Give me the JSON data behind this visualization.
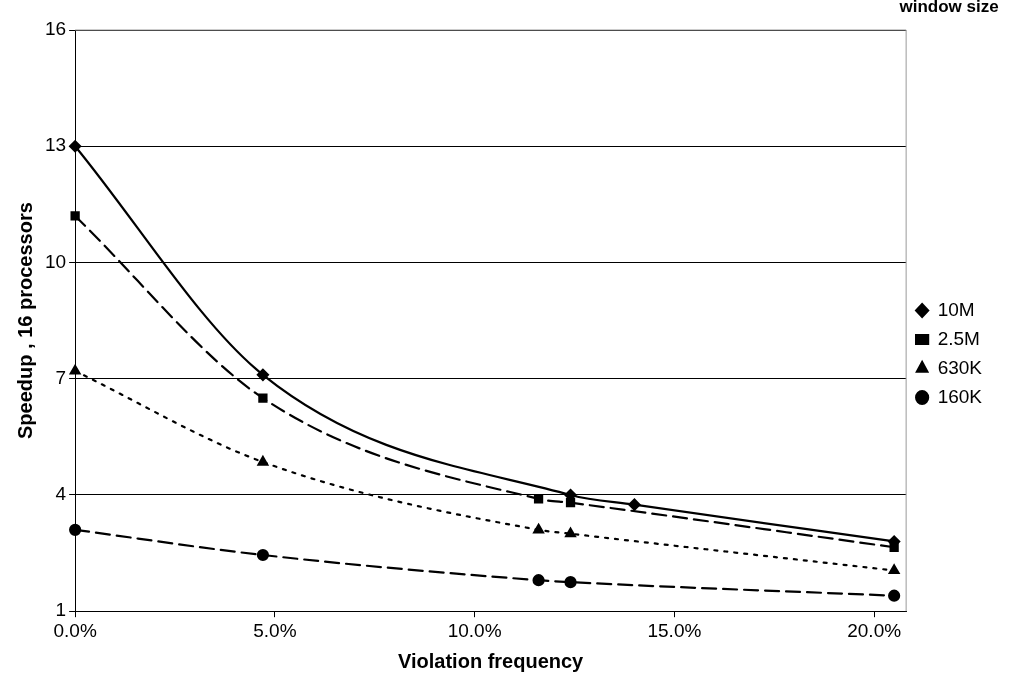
{
  "chart_data": {
    "type": "line",
    "xlabel": "Violation frequency",
    "ylabel": "Speedup , 16 processors",
    "legend_title": "window size",
    "legend": "right",
    "grid": "y",
    "xlim": [
      0,
      20.8
    ],
    "xticks": [
      {
        "value": 0,
        "label": "0.0%"
      },
      {
        "value": 5,
        "label": "5.0%"
      },
      {
        "value": 10,
        "label": "10.0%"
      },
      {
        "value": 15,
        "label": "15.0%"
      },
      {
        "value": 20,
        "label": "20.0%"
      }
    ],
    "ylim": [
      1,
      16
    ],
    "yticks": [
      1,
      4,
      7,
      10,
      13,
      16
    ],
    "series": [
      {
        "name": "10M",
        "color": "#000000",
        "marker": "diamond",
        "line_style": "solid",
        "x": [
          0,
          4.7,
          12.4,
          14.0,
          20.5
        ],
        "values": [
          13,
          7.1,
          4.0,
          3.75,
          2.8
        ]
      },
      {
        "name": "2.5M",
        "color": "#000000",
        "marker": "square",
        "line_style": "dashed",
        "x": [
          0,
          4.7,
          11.6,
          12.4,
          20.5
        ],
        "values": [
          11.2,
          6.5,
          3.9,
          3.8,
          2.65
        ]
      },
      {
        "name": "630K",
        "color": "#000000",
        "marker": "triangle",
        "line_style": "dotted",
        "x": [
          0,
          4.7,
          11.6,
          12.4,
          20.5
        ],
        "values": [
          7.2,
          4.85,
          3.1,
          3.0,
          2.05
        ]
      },
      {
        "name": "160K",
        "color": "#000000",
        "marker": "circle",
        "line_style": "dashed",
        "x": [
          0,
          4.7,
          11.6,
          12.4,
          20.5
        ],
        "values": [
          3.1,
          2.45,
          1.8,
          1.75,
          1.4
        ]
      }
    ]
  }
}
